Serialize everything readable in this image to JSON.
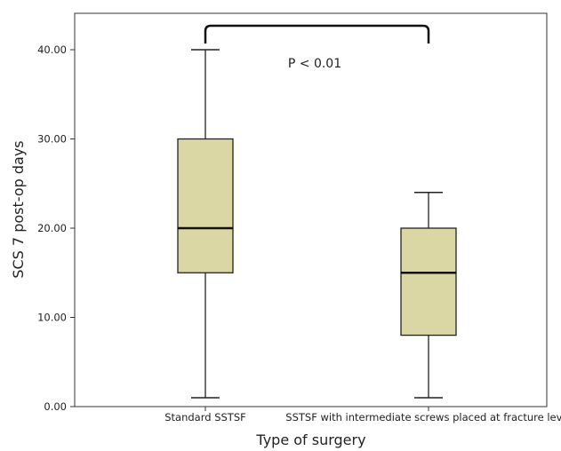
{
  "chart_data": {
    "type": "box",
    "title": "",
    "xlabel": "Type of surgery",
    "ylabel": "SCS 7 post-op days",
    "ylim": [
      0,
      45
    ],
    "yticks": [
      "0.00",
      "10.00",
      "20.00",
      "30.00",
      "40.00"
    ],
    "ytick_values": [
      0,
      10,
      20,
      30,
      40
    ],
    "categories": [
      "Standard SSTSF",
      "SSTSF with intermediate screws placed at fracture level"
    ],
    "boxes": [
      {
        "min": 1,
        "q1": 15,
        "median": 20,
        "q3": 30,
        "max": 40
      },
      {
        "min": 1,
        "q1": 8,
        "median": 15,
        "q3": 20,
        "max": 24
      }
    ],
    "annotation": "P < 0.01",
    "box_color": "#dad7a4",
    "grid": false
  }
}
